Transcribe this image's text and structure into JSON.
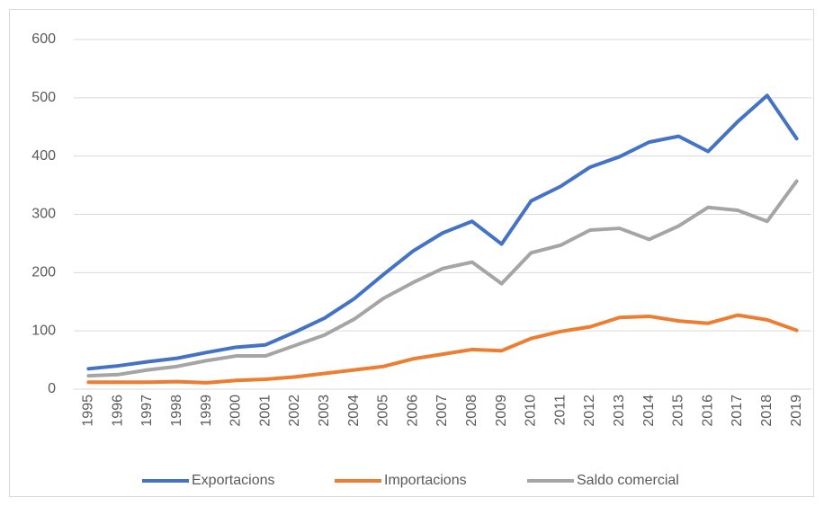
{
  "chart_data": {
    "type": "line",
    "categories": [
      "1995",
      "1996",
      "1997",
      "1998",
      "1999",
      "2000",
      "2001",
      "2002",
      "2003",
      "2004",
      "2005",
      "2006",
      "2007",
      "2008",
      "2009",
      "2010",
      "2011",
      "2012",
      "2013",
      "2014",
      "2015",
      "2016",
      "2017",
      "2018",
      "2019"
    ],
    "series": [
      {
        "name": "Exportacions",
        "color": "#4472c4",
        "values": [
          35,
          40,
          47,
          53,
          63,
          72,
          76,
          98,
          122,
          155,
          197,
          237,
          268,
          288,
          249,
          323,
          348,
          381,
          399,
          424,
          434,
          408,
          459,
          504,
          430
        ]
      },
      {
        "name": "Importacions",
        "color": "#ed7d31",
        "values": [
          12,
          12,
          12,
          13,
          11,
          15,
          17,
          21,
          27,
          33,
          39,
          52,
          60,
          68,
          66,
          87,
          99,
          107,
          123,
          125,
          117,
          113,
          127,
          119,
          101
        ]
      },
      {
        "name": "Saldo comercial",
        "color": "#a5a5a5",
        "values": [
          23,
          25,
          33,
          39,
          49,
          57,
          57,
          75,
          93,
          120,
          156,
          183,
          207,
          218,
          181,
          234,
          247,
          273,
          276,
          257,
          280,
          312,
          307,
          288,
          357
        ]
      }
    ],
    "ylim": [
      0,
      600
    ],
    "yticks": [
      0,
      100,
      200,
      300,
      400,
      500,
      600
    ],
    "grid": true,
    "legend": "bottom"
  }
}
